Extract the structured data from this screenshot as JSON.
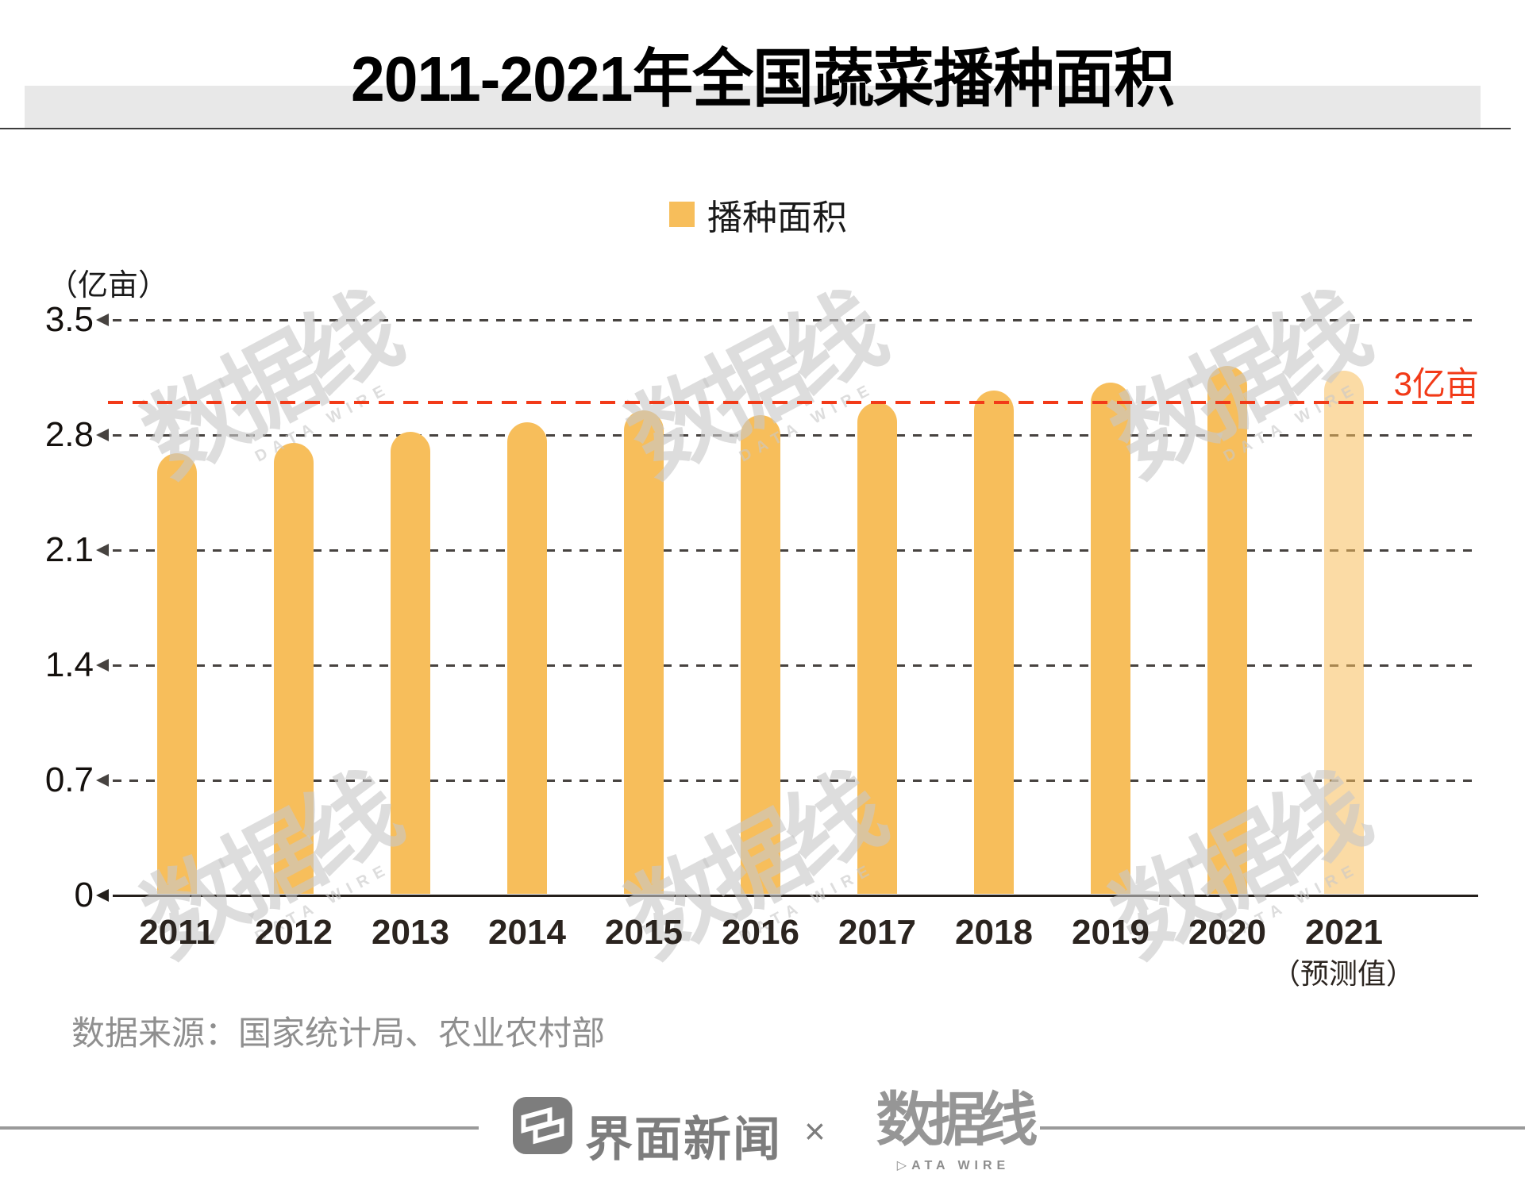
{
  "title": "2011-2021年全国蔬菜播种面积",
  "legend": {
    "label": "播种面积",
    "swatch_color": "#F7BE5B"
  },
  "y_axis": {
    "unit_label": "（亿亩）"
  },
  "reference_line": {
    "label": "3亿亩",
    "value": 3,
    "color": "#F23A18"
  },
  "x_axis": {
    "forecast_note": "（预测值）"
  },
  "source": "数据来源：国家统计局、农业农村部",
  "watermark": {
    "text": "数据线",
    "sub": "DATA WIRE"
  },
  "footer": {
    "brand_left": "界面新闻",
    "separator": "×",
    "brand_right": "数据线",
    "brand_right_sub": "▷ATA WIRE"
  },
  "chart_data": {
    "type": "bar",
    "title": "2011-2021年全国蔬菜播种面积",
    "ylabel": "（亿亩）",
    "categories": [
      "2011",
      "2012",
      "2013",
      "2014",
      "2015",
      "2016",
      "2017",
      "2018",
      "2019",
      "2020",
      "2021"
    ],
    "series": [
      {
        "name": "播种面积",
        "values": [
          2.69,
          2.75,
          2.82,
          2.88,
          2.95,
          2.92,
          3.0,
          3.07,
          3.12,
          3.22,
          3.19
        ]
      }
    ],
    "forecast_category": "2021",
    "ylim": [
      0,
      3.5
    ],
    "yticks": [
      0,
      0.7,
      1.4,
      2.1,
      2.8,
      3.5
    ],
    "reference_value": 3,
    "bar_color": "#F7BE5B",
    "forecast_bar_color": "rgba(247,190,91,0.55)",
    "grid": "horizontal-dashed",
    "legend_position": "top-center"
  }
}
